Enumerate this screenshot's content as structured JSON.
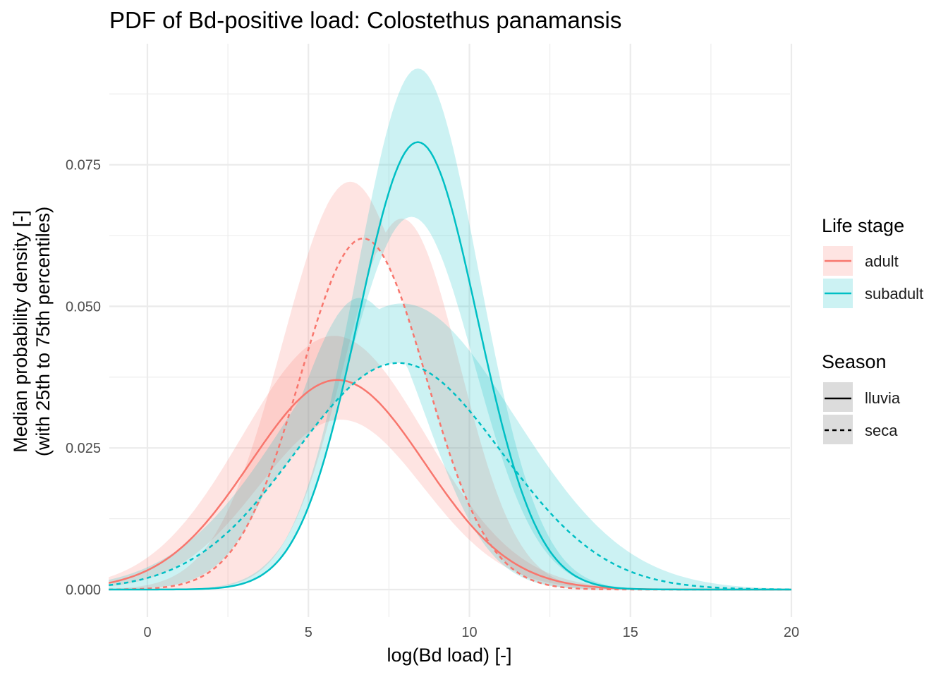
{
  "chart_data": {
    "type": "line",
    "title": "PDF of Bd-positive load: Colostethus panamansis",
    "xlabel": "log(Bd load) [-]",
    "ylabel_line1": "Median probability density [-]",
    "ylabel_line2": "(with 25th to 75th percentiles)",
    "xlim": [
      -1.2,
      20
    ],
    "ylim": [
      -0.004,
      0.096
    ],
    "x_ticks": [
      0,
      5,
      10,
      15,
      20
    ],
    "x_tick_labels": [
      "0",
      "5",
      "10",
      "15",
      "20"
    ],
    "y_ticks": [
      0,
      0.025,
      0.05,
      0.075
    ],
    "y_tick_labels": [
      "0.000",
      "0.025",
      "0.050",
      "0.075"
    ],
    "grid": true,
    "legend_placement": "right",
    "legends": {
      "life_stage": {
        "title": "Life stage",
        "entries": [
          {
            "label": "adult",
            "color": "#F8766D"
          },
          {
            "label": "subadult",
            "color": "#00BFC4"
          }
        ]
      },
      "season": {
        "title": "Season",
        "entries": [
          {
            "label": "lluvia",
            "linetype": "solid"
          },
          {
            "label": "seca",
            "linetype": "dashed"
          }
        ]
      }
    },
    "series": [
      {
        "life_stage": "adult",
        "season": "lluvia",
        "color": "#F8766D",
        "linetype": "solid",
        "median": {
          "mu": 5.9,
          "sigma": 2.7,
          "peak": 0.037
        },
        "band_lower": {
          "mu": 6.0,
          "sigma": 2.55,
          "peak": 0.03
        },
        "band_upper": {
          "mu": 5.8,
          "sigma": 2.85,
          "peak": 0.0448
        }
      },
      {
        "life_stage": "adult",
        "season": "seca",
        "color": "#F8766D",
        "linetype": "dashed",
        "median": {
          "mu": 6.7,
          "sigma": 1.95,
          "peak": 0.062
        },
        "band_lower": {
          "mu": 7.9,
          "sigma": 1.8,
          "peak": 0.0655
        },
        "band_upper": {
          "mu": 6.3,
          "sigma": 2.1,
          "peak": 0.072
        }
      },
      {
        "life_stage": "subadult",
        "season": "lluvia",
        "color": "#00BFC4",
        "linetype": "solid",
        "median": {
          "mu": 8.4,
          "sigma": 1.85,
          "peak": 0.079
        },
        "band_lower": {
          "mu": 8.2,
          "sigma": 1.95,
          "peak": 0.0658
        },
        "band_upper": {
          "mu": 8.4,
          "sigma": 1.9,
          "peak": 0.092
        }
      },
      {
        "life_stage": "subadult",
        "season": "seca",
        "color": "#00BFC4",
        "linetype": "dashed",
        "median": {
          "mu": 7.8,
          "sigma": 3.2,
          "peak": 0.04
        },
        "band_lower": {
          "mu": 6.6,
          "sigma": 2.0,
          "peak": 0.0515
        },
        "band_upper": {
          "mu": 7.9,
          "sigma": 3.5,
          "peak": 0.0505
        }
      }
    ]
  }
}
